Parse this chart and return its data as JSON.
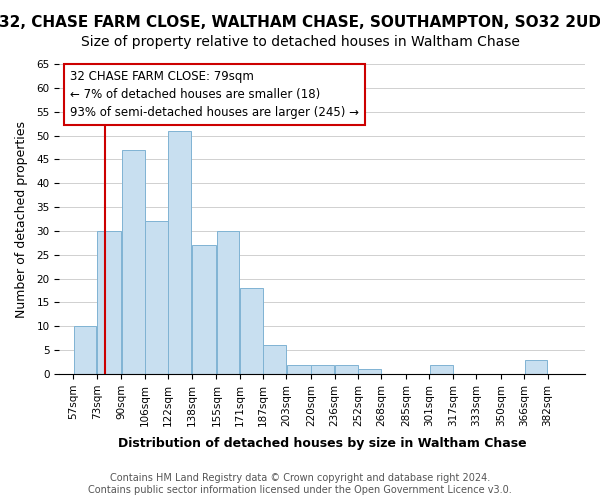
{
  "title": "32, CHASE FARM CLOSE, WALTHAM CHASE, SOUTHAMPTON, SO32 2UD",
  "subtitle": "Size of property relative to detached houses in Waltham Chase",
  "xlabel": "Distribution of detached houses by size in Waltham Chase",
  "ylabel": "Number of detached properties",
  "bin_labels": [
    "57sqm",
    "73sqm",
    "90sqm",
    "106sqm",
    "122sqm",
    "138sqm",
    "155sqm",
    "171sqm",
    "187sqm",
    "203sqm",
    "220sqm",
    "236sqm",
    "252sqm",
    "268sqm",
    "285sqm",
    "301sqm",
    "317sqm",
    "333sqm",
    "350sqm",
    "366sqm",
    "382sqm"
  ],
  "bar_heights": [
    10,
    30,
    47,
    32,
    51,
    27,
    30,
    18,
    6,
    2,
    2,
    2,
    1,
    0,
    0,
    2,
    0,
    0,
    0,
    3,
    0
  ],
  "bar_color": "#c8dff0",
  "bar_edge_color": "#7fb3d3",
  "property_line_x": 79,
  "bin_edges": [
    57,
    73,
    90,
    106,
    122,
    138,
    155,
    171,
    187,
    203,
    220,
    236,
    252,
    268,
    285,
    301,
    317,
    333,
    350,
    366,
    382,
    398
  ],
  "annotation_text": "32 CHASE FARM CLOSE: 79sqm\n← 7% of detached houses are smaller (18)\n93% of semi-detached houses are larger (245) →",
  "annotation_box_color": "#ffffff",
  "annotation_box_edge": "#cc0000",
  "ylim": [
    0,
    65
  ],
  "yticks": [
    0,
    5,
    10,
    15,
    20,
    25,
    30,
    35,
    40,
    45,
    50,
    55,
    60,
    65
  ],
  "footer_line1": "Contains HM Land Registry data © Crown copyright and database right 2024.",
  "footer_line2": "Contains public sector information licensed under the Open Government Licence v3.0.",
  "bg_color": "#ffffff",
  "grid_color": "#d0d0d0",
  "title_fontsize": 11,
  "subtitle_fontsize": 10,
  "axis_label_fontsize": 9,
  "tick_fontsize": 7.5,
  "footer_fontsize": 7,
  "annotation_fontsize": 8.5,
  "property_line_color": "#cc0000"
}
